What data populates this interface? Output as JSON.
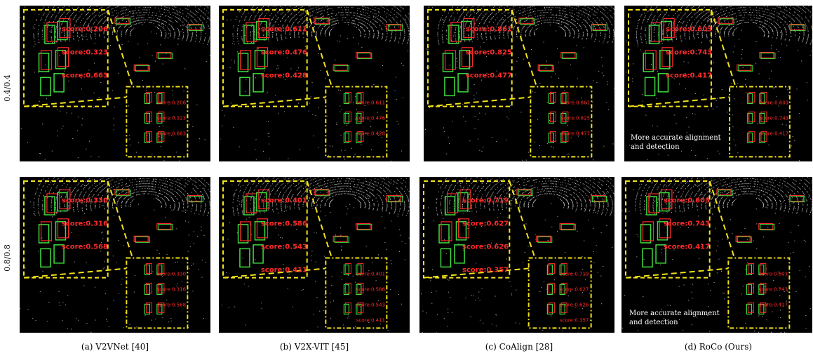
{
  "rows": [
    {
      "label": "0.4/0.4"
    },
    {
      "label": "0.8/0.8"
    }
  ],
  "captions": [
    "(a)  V2VNet [40]",
    "(b)  V2X-VIT [45]",
    "(c)  CoAlign [28]",
    "(d)  RoCo (Ours)"
  ],
  "notes": [
    "More accurate alignment",
    "and detection"
  ],
  "colors": {
    "ground_truth": "#3ddc3d",
    "prediction": "#ff2a2a",
    "zoom_outline": "#f2e21a",
    "background": "#000000"
  },
  "panels": [
    {
      "scores": [
        "score:0.206",
        "score:0.323",
        "score:0.663"
      ]
    },
    {
      "scores": [
        "score:0.611",
        "score:0.476",
        "score:0.428"
      ]
    },
    {
      "scores": [
        "score:0.861",
        "score:0.825",
        "score:0.477"
      ]
    },
    {
      "scores": [
        "score:0.603",
        "score:0.743",
        "score:0.417"
      ]
    },
    {
      "scores": [
        "score:0.330",
        "score:0.316",
        "score:0.568"
      ]
    },
    {
      "scores": [
        "score:0.401",
        "score:0.586",
        "score:0.543",
        "score:0.411"
      ]
    },
    {
      "scores": [
        "score:0.719",
        "score:0.627",
        "score:0.626",
        "score:0.357"
      ]
    },
    {
      "scores": [
        "score:0.603",
        "score:0.743",
        "score:0.417"
      ]
    }
  ]
}
